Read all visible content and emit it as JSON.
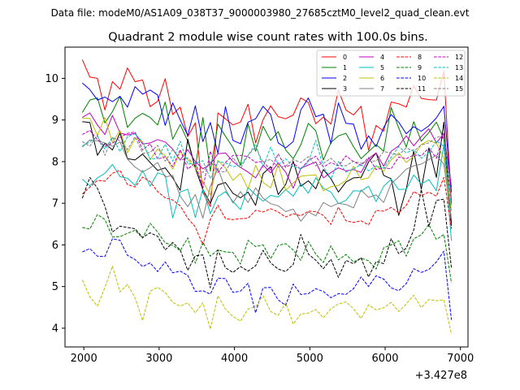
{
  "chart_data": {
    "type": "line",
    "suptitle": "Data file: modeM0/AS1A09_038T37_9000003980_27685cztM0_level2_quad_clean.evt",
    "title": "Quadrant 2 module wise count rates with 100.0s bins.",
    "xlabel": "",
    "ylabel": "",
    "x_offset_label": "+3.427e8",
    "xlim": [
      1750,
      7100
    ],
    "ylim": [
      3.55,
      10.75
    ],
    "xticks": [
      2000,
      3000,
      4000,
      5000,
      6000,
      7000
    ],
    "xtick_labels": [
      "2000",
      "3000",
      "4000",
      "5000",
      "6000",
      "7000"
    ],
    "yticks": [
      4,
      5,
      6,
      7,
      8,
      9,
      10
    ],
    "ytick_labels": [
      "4",
      "5",
      "6",
      "7",
      "8",
      "9",
      "10"
    ],
    "grid": false,
    "legend_position": "top-right",
    "x": [
      1980,
      2080,
      2180,
      2280,
      2380,
      2480,
      2580,
      2680,
      2780,
      2880,
      2980,
      3080,
      3180,
      3280,
      3380,
      3480,
      3580,
      3680,
      3780,
      3880,
      3980,
      4080,
      4180,
      4280,
      4380,
      4480,
      4580,
      4680,
      4780,
      4880,
      4980,
      5080,
      5180,
      5280,
      5380,
      5480,
      5580,
      5680,
      5780,
      5880,
      5980,
      6080,
      6180,
      6280,
      6380,
      6480,
      6580,
      6680,
      6780,
      6880
    ],
    "series": [
      {
        "name": "0",
        "color": "#ff0000",
        "dash": "solid",
        "values": [
          10.45,
          10.03,
          10.0,
          9.24,
          9.92,
          9.74,
          10.25,
          9.92,
          9.96,
          9.32,
          9.45,
          9.99,
          9.13,
          9.31,
          8.6,
          8.93,
          7.26,
          6.92,
          9.17,
          9.03,
          8.88,
          8.95,
          9.38,
          8.45,
          9.01,
          9.34,
          9.08,
          9.03,
          9.12,
          9.53,
          9.42,
          8.91,
          9.07,
          8.9,
          9.72,
          9.24,
          9.12,
          9.33,
          8.27,
          8.87,
          8.73,
          9.43,
          9.39,
          9.31,
          9.82,
          9.52,
          9.49,
          9.48,
          10.17,
          6.99
        ]
      },
      {
        "name": "1",
        "color": "#008000",
        "dash": "solid",
        "values": [
          9.18,
          9.48,
          9.53,
          8.93,
          9.2,
          9.57,
          8.82,
          9.04,
          9.16,
          9.06,
          8.88,
          9.43,
          8.54,
          8.89,
          8.49,
          7.85,
          9.06,
          7.77,
          8.9,
          8.61,
          8.34,
          7.91,
          8.91,
          8.25,
          8.85,
          8.51,
          8.72,
          8.28,
          8.07,
          8.4,
          8.92,
          8.74,
          8.04,
          8.46,
          8.62,
          8.68,
          8.36,
          8.07,
          8.24,
          8.41,
          8.25,
          9.3,
          8.81,
          8.35,
          8.96,
          8.49,
          8.7,
          8.95,
          8.54,
          6.54
        ]
      },
      {
        "name": "2",
        "color": "#0000ff",
        "dash": "solid",
        "values": [
          9.89,
          9.73,
          9.48,
          9.55,
          9.44,
          9.57,
          9.31,
          9.8,
          9.62,
          9.72,
          9.6,
          8.87,
          9.41,
          9.0,
          8.63,
          9.34,
          8.48,
          8.94,
          8.2,
          9.32,
          8.51,
          8.43,
          8.95,
          9.03,
          9.33,
          9.13,
          8.45,
          8.33,
          8.48,
          9.24,
          9.53,
          9.08,
          9.14,
          8.43,
          9.41,
          8.92,
          8.9,
          8.3,
          8.62,
          8.36,
          8.82,
          9.13,
          8.95,
          8.67,
          8.84,
          8.73,
          8.86,
          9.05,
          9.33,
          7.27
        ]
      },
      {
        "name": "3",
        "color": "#000000",
        "dash": "solid",
        "values": [
          8.96,
          8.94,
          8.15,
          8.44,
          8.28,
          8.69,
          8.07,
          8.04,
          8.18,
          7.98,
          7.79,
          7.85,
          7.61,
          7.31,
          8.54,
          7.84,
          7.33,
          7.0,
          7.44,
          7.5,
          7.24,
          7.13,
          7.27,
          6.95,
          7.71,
          7.88,
          7.21,
          7.45,
          8.01,
          7.41,
          7.54,
          7.35,
          7.81,
          7.59,
          7.27,
          7.51,
          7.61,
          7.62,
          7.99,
          8.21,
          7.67,
          7.59,
          6.71,
          7.34,
          8.25,
          7.34,
          8.33,
          7.62,
          8.95,
          6.46
        ]
      },
      {
        "name": "4",
        "color": "#bf00bf",
        "dash": "solid",
        "values": [
          9.06,
          9.17,
          8.88,
          8.65,
          9.11,
          8.69,
          8.64,
          8.68,
          8.42,
          8.45,
          8.53,
          8.47,
          8.3,
          8.04,
          8.29,
          8.0,
          7.83,
          7.94,
          8.19,
          8.21,
          8.0,
          7.86,
          7.75,
          7.61,
          7.92,
          7.73,
          7.97,
          7.75,
          7.36,
          7.84,
          7.92,
          7.99,
          7.61,
          7.74,
          7.85,
          7.78,
          7.81,
          7.74,
          8.07,
          8.21,
          7.89,
          8.25,
          8.38,
          8.62,
          8.38,
          8.6,
          8.79,
          8.45,
          8.68,
          7.4
        ]
      },
      {
        "name": "5",
        "color": "#00bfbf",
        "dash": "solid",
        "values": [
          7.58,
          7.42,
          7.61,
          7.72,
          7.93,
          7.64,
          7.6,
          7.43,
          7.79,
          7.41,
          7.73,
          7.67,
          6.65,
          7.27,
          7.34,
          6.66,
          7.35,
          6.75,
          7.16,
          7.28,
          7.04,
          6.85,
          7.38,
          7.2,
          7.05,
          7.19,
          7.15,
          7.33,
          7.17,
          7.47,
          7.24,
          7.61,
          7.36,
          7.27,
          6.99,
          7.07,
          7.3,
          7.29,
          7.41,
          7.04,
          7.41,
          7.58,
          7.33,
          7.34,
          7.68,
          7.46,
          7.57,
          7.3,
          8.41,
          6.1
        ]
      },
      {
        "name": "6",
        "color": "#bfbf00",
        "dash": "solid",
        "values": [
          9.04,
          9.04,
          8.63,
          9.06,
          8.46,
          8.75,
          8.21,
          8.55,
          8.48,
          8.05,
          8.3,
          8.14,
          7.82,
          8.24,
          8.05,
          7.85,
          7.52,
          7.2,
          8.03,
          7.85,
          7.55,
          7.72,
          7.34,
          7.91,
          7.5,
          7.37,
          7.93,
          7.31,
          7.49,
          7.65,
          7.67,
          7.68,
          7.3,
          7.4,
          7.43,
          7.55,
          7.89,
          7.57,
          7.61,
          7.9,
          7.77,
          8.04,
          8.21,
          7.98,
          8.13,
          8.41,
          8.51,
          8.44,
          8.09,
          6.82
        ]
      },
      {
        "name": "7",
        "color": "#808080",
        "dash": "solid",
        "values": [
          8.35,
          8.52,
          8.5,
          8.45,
          8.37,
          8.47,
          8.06,
          7.87,
          7.75,
          7.85,
          7.98,
          7.63,
          7.67,
          7.17,
          6.92,
          7.21,
          6.64,
          7.41,
          7.84,
          7.34,
          7.01,
          7.28,
          7.02,
          7.37,
          7.12,
          6.99,
          6.94,
          6.8,
          6.86,
          6.57,
          6.79,
          6.7,
          7.02,
          6.92,
          7.0,
          6.97,
          6.89,
          7.32,
          7.14,
          7.2,
          7.02,
          7.47,
          7.63,
          7.82,
          7.9,
          7.94,
          8.05,
          8.15,
          7.94,
          6.63
        ]
      },
      {
        "name": "8",
        "color": "#ff0000",
        "dash": "dashed",
        "values": [
          7.22,
          7.39,
          7.55,
          7.53,
          7.72,
          7.79,
          7.45,
          7.39,
          7.63,
          7.52,
          7.28,
          7.13,
          7.08,
          6.94,
          6.64,
          6.43,
          6.0,
          6.62,
          6.95,
          6.63,
          6.61,
          6.63,
          6.64,
          6.83,
          6.79,
          6.87,
          6.79,
          6.67,
          6.75,
          6.7,
          6.81,
          6.8,
          6.71,
          6.49,
          6.91,
          6.58,
          6.54,
          6.58,
          6.48,
          6.83,
          6.81,
          6.9,
          6.77,
          6.95,
          7.28,
          7.18,
          7.27,
          7.17,
          7.62,
          6.39
        ]
      },
      {
        "name": "9",
        "color": "#008000",
        "dash": "dashed",
        "values": [
          6.42,
          6.38,
          6.73,
          6.61,
          6.19,
          6.2,
          6.28,
          6.35,
          6.16,
          6.52,
          6.31,
          6.05,
          5.99,
          5.86,
          6.17,
          5.56,
          6.07,
          5.73,
          5.88,
          5.83,
          5.82,
          5.54,
          6.11,
          5.96,
          6.0,
          5.67,
          5.99,
          6.03,
          5.88,
          5.63,
          6.08,
          5.78,
          5.58,
          5.98,
          5.64,
          5.77,
          5.59,
          5.68,
          5.62,
          5.42,
          5.93,
          6.0,
          6.1,
          5.73,
          6.15,
          6.24,
          6.49,
          6.13,
          6.25,
          5.09
        ]
      },
      {
        "name": "10",
        "color": "#0000ff",
        "dash": "dashed",
        "values": [
          5.83,
          5.91,
          5.73,
          5.72,
          6.15,
          6.11,
          5.75,
          5.65,
          5.48,
          5.57,
          5.36,
          5.59,
          5.33,
          5.37,
          5.27,
          4.88,
          4.9,
          4.82,
          5.2,
          5.19,
          4.86,
          4.89,
          5.08,
          4.37,
          4.97,
          4.98,
          4.68,
          4.55,
          5.06,
          4.81,
          4.83,
          4.95,
          4.88,
          4.73,
          4.83,
          4.81,
          4.95,
          5.23,
          5.0,
          5.26,
          5.18,
          4.97,
          4.9,
          5.07,
          5.43,
          5.34,
          5.41,
          5.59,
          5.85,
          4.2
        ]
      },
      {
        "name": "11",
        "color": "#000000",
        "dash": "dashed",
        "values": [
          7.12,
          7.62,
          7.36,
          6.93,
          6.31,
          6.45,
          6.42,
          6.39,
          6.18,
          6.29,
          6.21,
          5.88,
          6.06,
          5.88,
          5.39,
          5.74,
          5.76,
          4.97,
          5.88,
          5.45,
          5.34,
          5.48,
          5.37,
          5.5,
          5.87,
          5.57,
          5.42,
          5.36,
          5.53,
          6.25,
          5.78,
          5.63,
          5.43,
          5.66,
          5.22,
          5.63,
          5.55,
          5.69,
          5.23,
          5.6,
          5.55,
          6.15,
          5.79,
          5.92,
          6.36,
          7.33,
          6.44,
          7.07,
          7.1,
          5.44
        ]
      },
      {
        "name": "12",
        "color": "#bf00bf",
        "dash": "dashed",
        "values": [
          8.65,
          8.75,
          8.53,
          8.37,
          8.44,
          8.58,
          8.68,
          8.71,
          8.28,
          8.43,
          8.06,
          8.12,
          7.88,
          8.29,
          7.82,
          7.97,
          7.36,
          8.25,
          7.74,
          7.98,
          8.15,
          8.15,
          8.12,
          7.98,
          8.01,
          7.79,
          8.19,
          7.86,
          7.96,
          7.82,
          8.03,
          8.13,
          7.87,
          7.98,
          7.9,
          8.14,
          8.0,
          7.91,
          8.1,
          7.81,
          7.85,
          7.83,
          8.11,
          8.07,
          8.16,
          8.14,
          8.33,
          8.08,
          8.68,
          7.06
        ]
      },
      {
        "name": "13",
        "color": "#00bfbf",
        "dash": "dashed",
        "values": [
          8.38,
          8.47,
          8.61,
          8.3,
          8.59,
          8.24,
          8.6,
          8.67,
          8.47,
          8.06,
          8.08,
          8.42,
          8.01,
          8.49,
          7.94,
          7.97,
          8.02,
          7.59,
          8.0,
          7.97,
          7.88,
          7.91,
          8.15,
          8.42,
          7.86,
          8.35,
          7.93,
          8.07,
          7.88,
          7.83,
          7.99,
          8.51,
          7.87,
          7.59,
          8.0,
          7.75,
          7.83,
          7.93,
          7.78,
          7.9,
          7.84,
          8.1,
          8.36,
          8.21,
          8.29,
          8.08,
          8.22,
          8.5,
          8.37,
          6.92
        ]
      },
      {
        "name": "14",
        "color": "#bfbf00",
        "dash": "dashed",
        "values": [
          5.16,
          4.75,
          4.53,
          4.98,
          5.49,
          4.87,
          5.05,
          4.73,
          4.18,
          4.89,
          4.98,
          4.86,
          4.62,
          4.53,
          4.61,
          4.37,
          4.61,
          3.98,
          4.78,
          4.46,
          4.28,
          4.17,
          4.46,
          4.52,
          4.78,
          4.4,
          4.31,
          4.61,
          4.1,
          4.34,
          4.36,
          4.45,
          4.25,
          4.47,
          4.58,
          4.63,
          4.47,
          4.23,
          4.56,
          4.44,
          4.49,
          4.62,
          4.4,
          4.58,
          4.79,
          4.49,
          4.69,
          4.66,
          4.68,
          3.86
        ]
      },
      {
        "name": "15",
        "color": "#808080",
        "dash": "dashed",
        "values": [
          8.48,
          8.37,
          8.64,
          8.15,
          8.58,
          8.5,
          8.29,
          8.6,
          8.2,
          8.22,
          8.39,
          8.01,
          8.29,
          8.03,
          8.09,
          7.91,
          7.74,
          8.0,
          7.78,
          7.75,
          8.1,
          7.84,
          8.15,
          8.35,
          7.98,
          8.06,
          7.87,
          7.89,
          8.05,
          7.98,
          8.12,
          7.9,
          7.96,
          8.08,
          7.91,
          7.9,
          8.01,
          7.96,
          8.02,
          8.01,
          8.24,
          8.21,
          8.16,
          8.33,
          8.25,
          8.4,
          8.45,
          8.58,
          8.63,
          7.15
        ]
      }
    ]
  }
}
